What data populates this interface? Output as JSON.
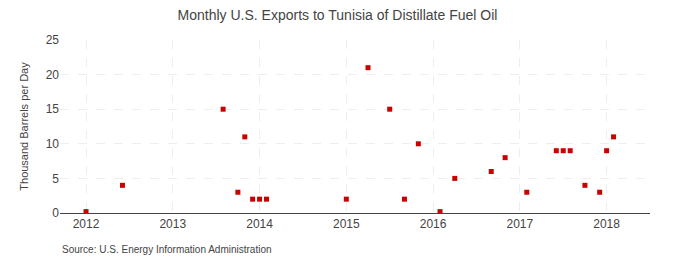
{
  "chart_data": {
    "type": "scatter",
    "title": "Monthly U.S. Exports to Tunisia of Distillate Fuel Oil",
    "y_label": "Thousand Barrels per Day",
    "annotations": [
      "Source: U.S. Energy Information Administration"
    ],
    "x": [
      2012.0,
      2012.42,
      2013.58,
      2013.75,
      2013.83,
      2013.92,
      2014.0,
      2014.08,
      2015.0,
      2015.25,
      2015.5,
      2015.67,
      2015.83,
      2016.08,
      2016.25,
      2016.67,
      2016.83,
      2017.08,
      2017.42,
      2017.5,
      2017.58,
      2017.75,
      2017.92,
      2018.0,
      2018.08
    ],
    "values": [
      0.2,
      4.0,
      15.0,
      3.0,
      11.0,
      2.0,
      2.0,
      2.0,
      2.0,
      21.0,
      15.0,
      2.0,
      10.0,
      0.2,
      5.0,
      6.0,
      8.0,
      3.0,
      9.0,
      9.0,
      9.0,
      4.0,
      3.0,
      9.0,
      11.0
    ],
    "color": "#cc0000",
    "marker": "square",
    "xlim": [
      2011.7,
      2018.5
    ],
    "xticks": [
      2012,
      2013,
      2014,
      2015,
      2016,
      2017,
      2018
    ],
    "ylim": [
      0,
      25
    ],
    "yticks": [
      0,
      5,
      10,
      15,
      20,
      25
    ],
    "grid": true
  }
}
